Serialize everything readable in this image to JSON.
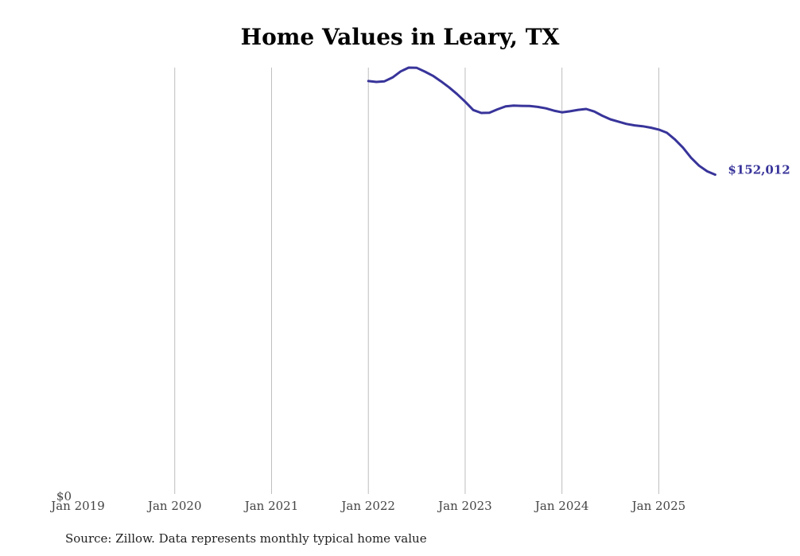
{
  "chart_data": {
    "type": "line",
    "title": "Home Values in Leary, TX",
    "xlabel": "",
    "ylabel": "",
    "x_ticks": [
      "Jan 2019",
      "Jan 2020",
      "Jan 2021",
      "Jan 2022",
      "Jan 2023",
      "Jan 2024",
      "Jan 2025"
    ],
    "y_ticks": [
      "$0"
    ],
    "xlim": [
      "2019-01",
      "2025-12"
    ],
    "ylim": [
      0,
      203000
    ],
    "grid": "vertical",
    "legend": "none",
    "line_color": "#38349a",
    "end_label": "$152,012",
    "series": [
      {
        "x": [
          "2022-01",
          "2022-02",
          "2022-03",
          "2022-04",
          "2022-05",
          "2022-06",
          "2022-07",
          "2022-08",
          "2022-09",
          "2022-10",
          "2022-11",
          "2022-12",
          "2023-01",
          "2023-02",
          "2023-03",
          "2023-04",
          "2023-05",
          "2023-06",
          "2023-07",
          "2023-08",
          "2023-09",
          "2023-10",
          "2023-11",
          "2023-12",
          "2024-01",
          "2024-02",
          "2024-03",
          "2024-04",
          "2024-05",
          "2024-06",
          "2024-07",
          "2024-08",
          "2024-09",
          "2024-10",
          "2024-11",
          "2024-12",
          "2025-01",
          "2025-02",
          "2025-03",
          "2025-04",
          "2025-05",
          "2025-06",
          "2025-07",
          "2025-08"
        ],
        "values": [
          196600,
          196200,
          196500,
          198300,
          201200,
          203000,
          202900,
          201100,
          199100,
          196500,
          193600,
          190400,
          186800,
          182800,
          181400,
          181500,
          183100,
          184500,
          184900,
          184800,
          184700,
          184300,
          183600,
          182500,
          181700,
          182200,
          182900,
          183300,
          182100,
          180100,
          178400,
          177300,
          176200,
          175500,
          175100,
          174400,
          173500,
          172000,
          168800,
          164900,
          160100,
          156300,
          153600,
          152012
        ]
      }
    ]
  },
  "source_note": "Source: Zillow. Data represents monthly typical home value"
}
